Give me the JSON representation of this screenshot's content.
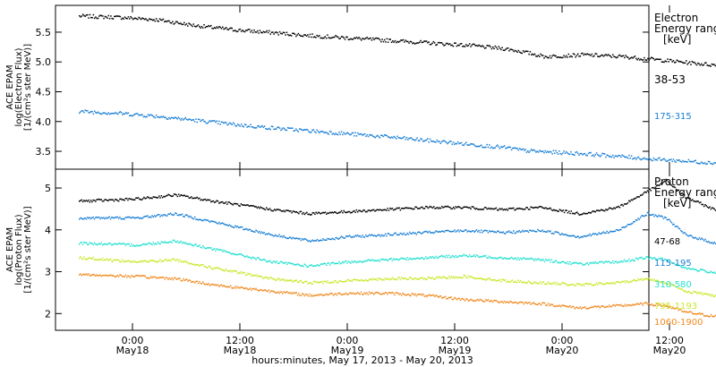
{
  "chart_data": [
    {
      "type": "scatter",
      "panel": "electron",
      "ylabel_lines": [
        "ACE EPAM",
        "log(Electron Flux)",
        "[1/(cm²s ster MeV)]"
      ],
      "ylim": [
        3.2,
        5.95
      ],
      "yticks": [
        "3.5",
        "4.0",
        "4.5",
        "5.0",
        "5.5"
      ],
      "legend_title": [
        "Electron",
        "Energy range",
        "[keV]"
      ],
      "series": [
        {
          "name": "38-53",
          "color": "#000000",
          "knots": [
            [
              0,
              5.78
            ],
            [
              4,
              5.76
            ],
            [
              8,
              5.72
            ],
            [
              12,
              5.62
            ],
            [
              16,
              5.55
            ],
            [
              20,
              5.5
            ],
            [
              24,
              5.45
            ],
            [
              28,
              5.41
            ],
            [
              32,
              5.37
            ],
            [
              36,
              5.33
            ],
            [
              40,
              5.29
            ],
            [
              44,
              5.23
            ],
            [
              46,
              5.17
            ],
            [
              48,
              5.1
            ],
            [
              52,
              5.13
            ],
            [
              56,
              5.1
            ],
            [
              60,
              5.04
            ],
            [
              64,
              4.98
            ],
            [
              68,
              4.92
            ],
            [
              71,
              4.9
            ]
          ]
        },
        {
          "name": "175-315",
          "color": "#1a7fd4",
          "knots": [
            [
              0,
              4.18
            ],
            [
              4,
              4.15
            ],
            [
              8,
              4.1
            ],
            [
              12,
              4.03
            ],
            [
              16,
              3.96
            ],
            [
              20,
              3.9
            ],
            [
              24,
              3.85
            ],
            [
              28,
              3.8
            ],
            [
              32,
              3.75
            ],
            [
              36,
              3.69
            ],
            [
              40,
              3.63
            ],
            [
              44,
              3.57
            ],
            [
              46,
              3.52
            ],
            [
              48,
              3.5
            ],
            [
              52,
              3.47
            ],
            [
              56,
              3.42
            ],
            [
              60,
              3.37
            ],
            [
              64,
              3.33
            ],
            [
              68,
              3.29
            ],
            [
              71,
              3.26
            ]
          ]
        }
      ]
    },
    {
      "type": "scatter",
      "panel": "proton",
      "ylabel_lines": [
        "ACE EPAM",
        "log(Proton Flux)",
        "[1/(cm²s ster MeV)]"
      ],
      "ylim": [
        1.6,
        5.45
      ],
      "yticks": [
        "2",
        "3",
        "4",
        "5"
      ],
      "legend_title": [
        "Proton",
        "Energy range",
        "[keV]"
      ],
      "series": [
        {
          "name": "47-68",
          "color": "#000000",
          "knots": [
            [
              0,
              4.7
            ],
            [
              6,
              4.75
            ],
            [
              10,
              4.85
            ],
            [
              14,
              4.7
            ],
            [
              20,
              4.5
            ],
            [
              24,
              4.4
            ],
            [
              28,
              4.45
            ],
            [
              32,
              4.5
            ],
            [
              36,
              4.55
            ],
            [
              40,
              4.55
            ],
            [
              44,
              4.5
            ],
            [
              48,
              4.55
            ],
            [
              52,
              4.4
            ],
            [
              56,
              4.55
            ],
            [
              60,
              5.05
            ],
            [
              61,
              5.2
            ],
            [
              63,
              4.8
            ],
            [
              66,
              4.5
            ],
            [
              70,
              4.3
            ],
            [
              74,
              4.25
            ],
            [
              78,
              4.25
            ],
            [
              80,
              4.3
            ]
          ]
        },
        {
          "name": "115-195",
          "color": "#1a7fd4",
          "knots": [
            [
              0,
              4.3
            ],
            [
              6,
              4.3
            ],
            [
              10,
              4.4
            ],
            [
              14,
              4.2
            ],
            [
              20,
              3.9
            ],
            [
              24,
              3.75
            ],
            [
              28,
              3.85
            ],
            [
              32,
              3.9
            ],
            [
              36,
              3.95
            ],
            [
              40,
              4.0
            ],
            [
              44,
              3.95
            ],
            [
              48,
              4.0
            ],
            [
              52,
              3.85
            ],
            [
              56,
              4.0
            ],
            [
              59,
              4.4
            ],
            [
              61,
              4.3
            ],
            [
              63,
              3.9
            ],
            [
              66,
              3.7
            ],
            [
              70,
              3.6
            ],
            [
              74,
              3.6
            ],
            [
              78,
              3.55
            ],
            [
              80,
              3.65
            ]
          ]
        },
        {
          "name": "310-580",
          "color": "#22e0d0",
          "knots": [
            [
              0,
              3.7
            ],
            [
              6,
              3.65
            ],
            [
              10,
              3.75
            ],
            [
              14,
              3.55
            ],
            [
              20,
              3.25
            ],
            [
              24,
              3.15
            ],
            [
              28,
              3.25
            ],
            [
              32,
              3.3
            ],
            [
              36,
              3.35
            ],
            [
              40,
              3.4
            ],
            [
              44,
              3.35
            ],
            [
              48,
              3.3
            ],
            [
              52,
              3.2
            ],
            [
              56,
              3.25
            ],
            [
              59,
              3.35
            ],
            [
              61,
              3.3
            ],
            [
              63,
              3.1
            ],
            [
              66,
              3.0
            ],
            [
              70,
              2.9
            ],
            [
              74,
              2.85
            ],
            [
              78,
              2.85
            ],
            [
              80,
              2.85
            ]
          ]
        },
        {
          "name": "795-1193",
          "color": "#c8e82a",
          "knots": [
            [
              0,
              3.35
            ],
            [
              6,
              3.25
            ],
            [
              10,
              3.3
            ],
            [
              14,
              3.1
            ],
            [
              20,
              2.85
            ],
            [
              24,
              2.75
            ],
            [
              28,
              2.8
            ],
            [
              32,
              2.85
            ],
            [
              36,
              2.85
            ],
            [
              40,
              2.9
            ],
            [
              44,
              2.8
            ],
            [
              48,
              2.75
            ],
            [
              52,
              2.7
            ],
            [
              56,
              2.75
            ],
            [
              59,
              2.85
            ],
            [
              61,
              2.75
            ],
            [
              63,
              2.55
            ],
            [
              66,
              2.45
            ],
            [
              70,
              2.4
            ],
            [
              74,
              2.35
            ],
            [
              78,
              2.35
            ],
            [
              80,
              2.35
            ]
          ]
        },
        {
          "name": "1060-1900",
          "color": "#f08a1e",
          "knots": [
            [
              0,
              2.95
            ],
            [
              6,
              2.9
            ],
            [
              10,
              2.85
            ],
            [
              14,
              2.7
            ],
            [
              20,
              2.55
            ],
            [
              24,
              2.45
            ],
            [
              28,
              2.5
            ],
            [
              32,
              2.5
            ],
            [
              36,
              2.45
            ],
            [
              40,
              2.35
            ],
            [
              44,
              2.3
            ],
            [
              48,
              2.25
            ],
            [
              52,
              2.15
            ],
            [
              56,
              2.2
            ],
            [
              59,
              2.25
            ],
            [
              61,
              2.2
            ],
            [
              63,
              2.05
            ],
            [
              66,
              1.95
            ],
            [
              70,
              1.9
            ],
            [
              74,
              1.85
            ],
            [
              78,
              1.82
            ],
            [
              80,
              1.8
            ]
          ]
        }
      ]
    }
  ],
  "xaxis": {
    "ticks": [
      {
        "label1": "0:00",
        "label2": "May18",
        "t": 0
      },
      {
        "label1": "12:00",
        "label2": "May18",
        "t": 12
      },
      {
        "label1": "0:00",
        "label2": "May19",
        "t": 24
      },
      {
        "label1": "12:00",
        "label2": "May19",
        "t": 36
      },
      {
        "label1": "0:00",
        "label2": "May20",
        "t": 48
      },
      {
        "label1": "12:00",
        "label2": "May20",
        "t": 60
      }
    ],
    "title": "hours:minutes, May 17, 2013 - May 20, 2013"
  }
}
